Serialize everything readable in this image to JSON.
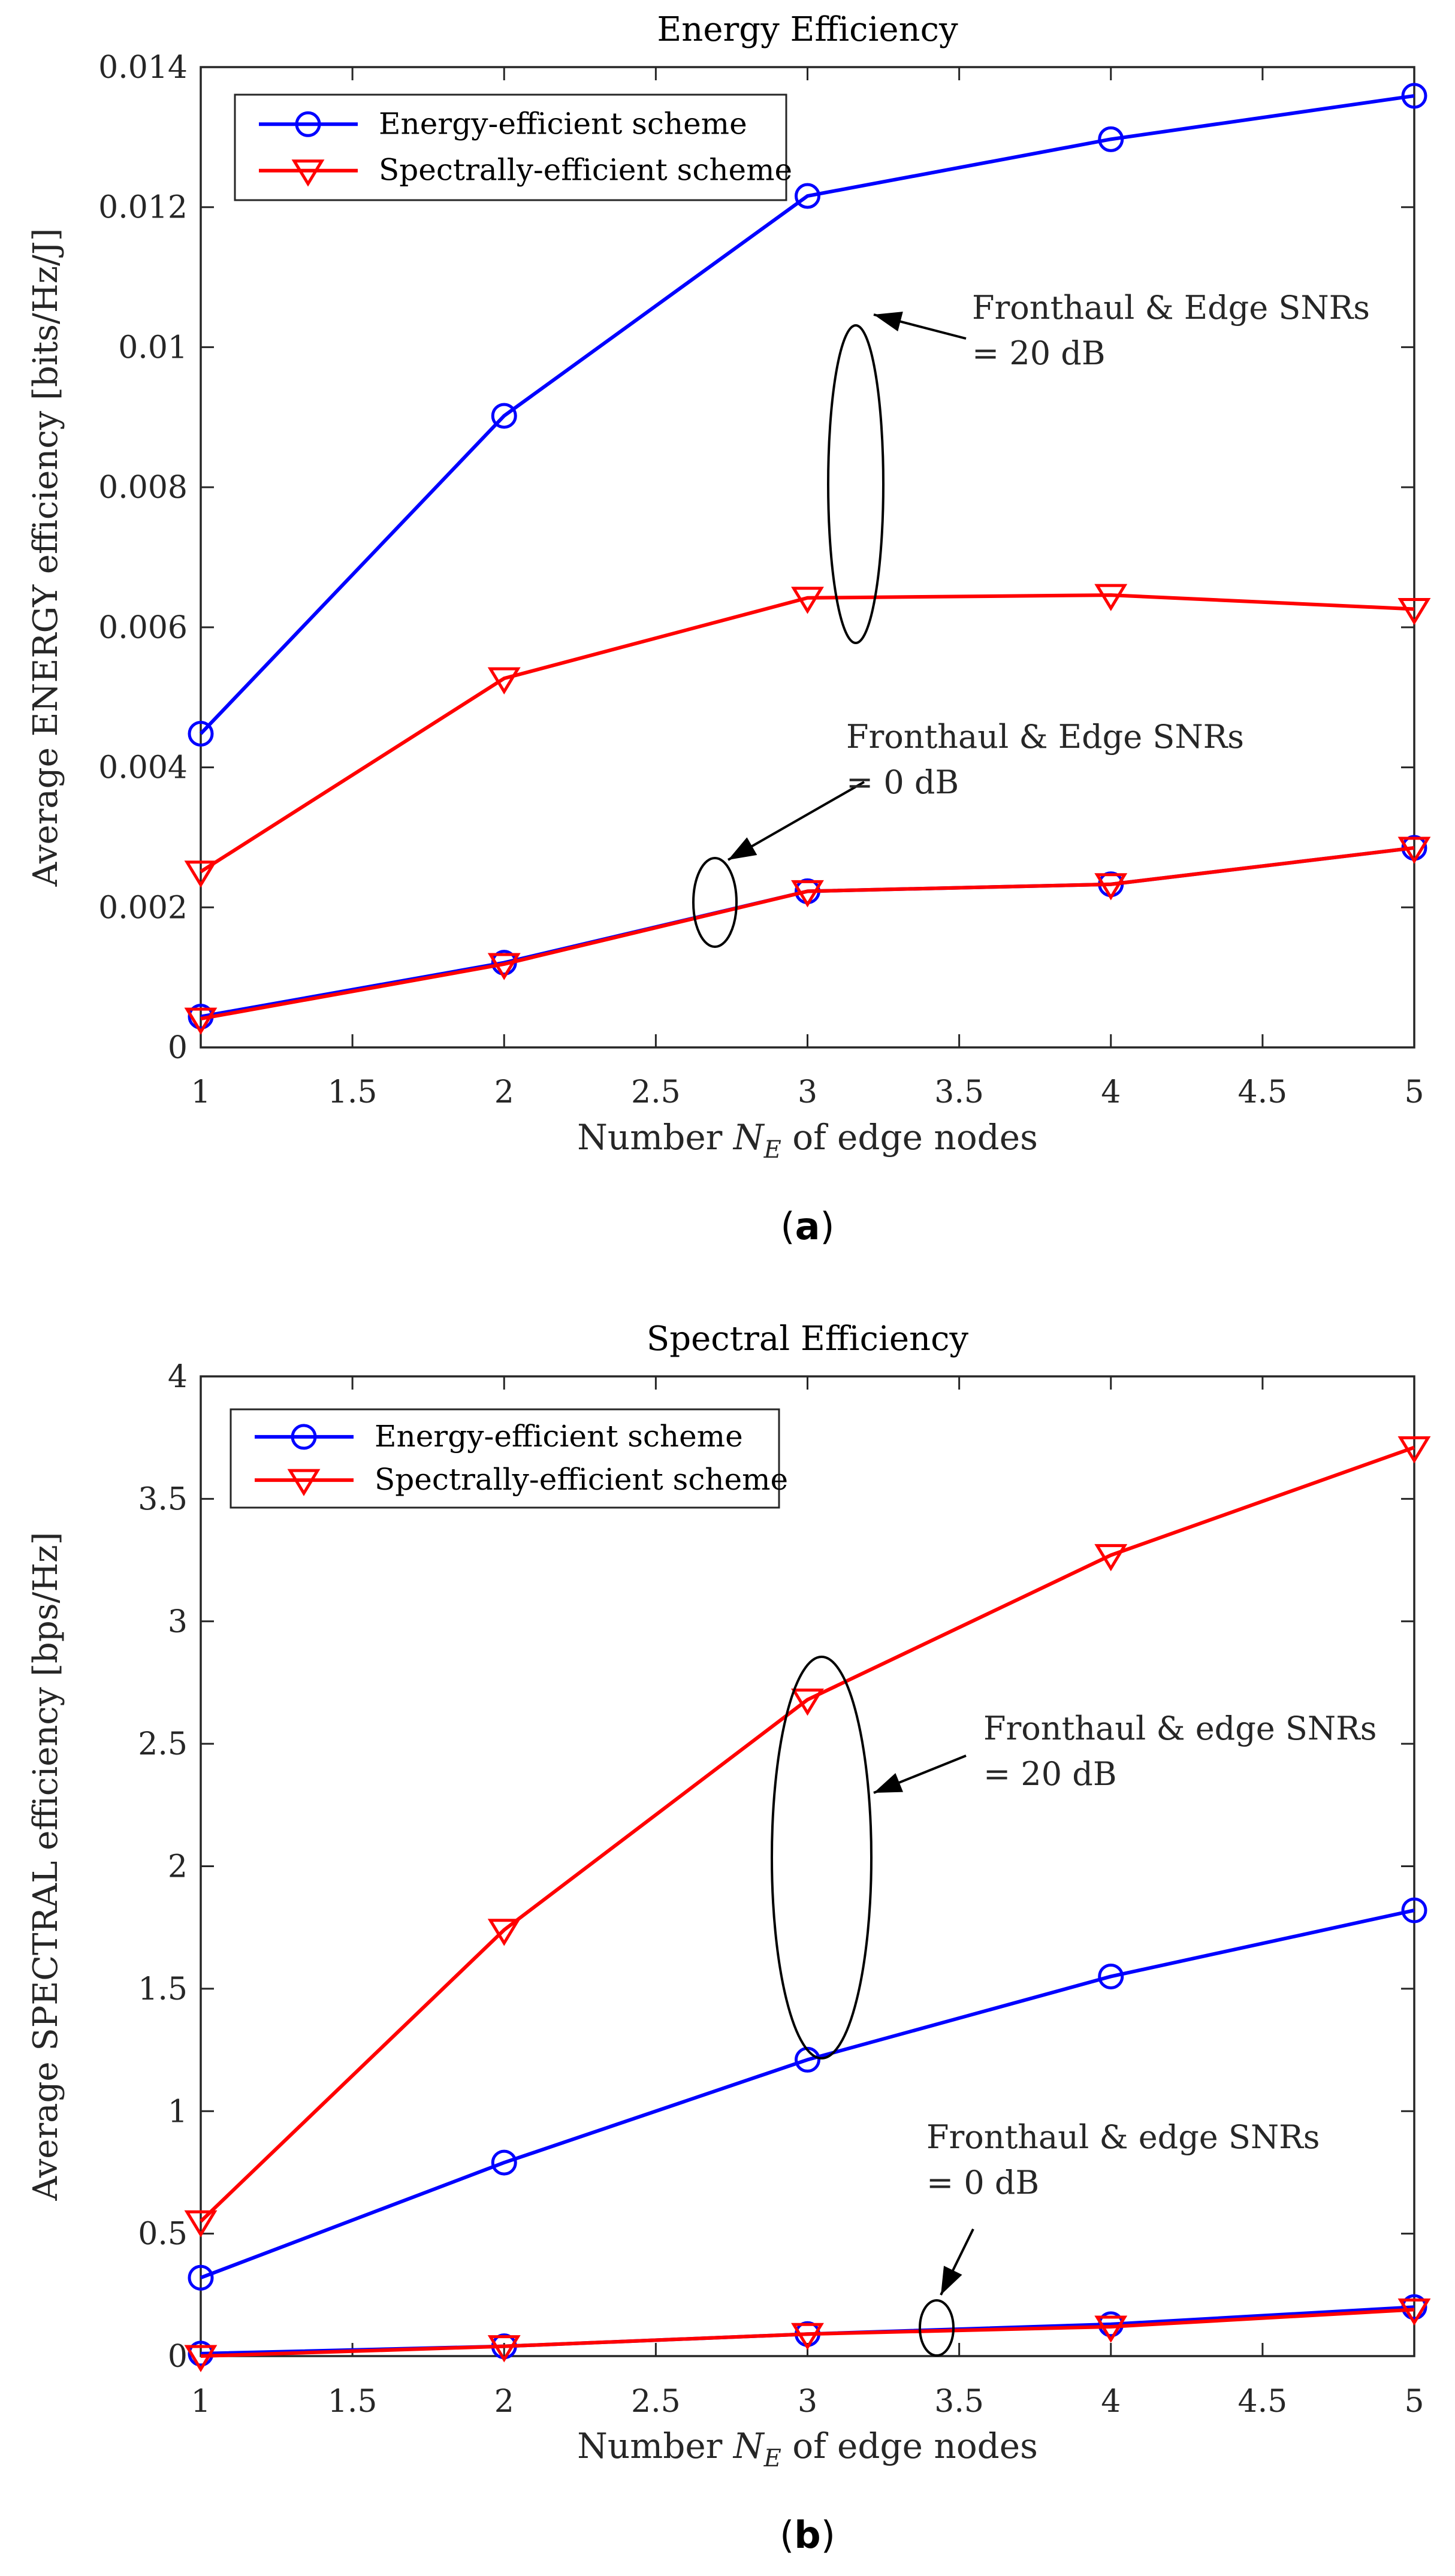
{
  "chart_data": [
    {
      "type": "line",
      "title": "Energy Efficiency",
      "xlabel_prefix": "Number ",
      "xlabel_symbol": "N",
      "xlabel_subscript": "E",
      "xlabel_suffix": " of edge nodes",
      "ylabel": "Average ENERGY efficiency [bits/Hz/J]",
      "xlim": [
        1,
        5
      ],
      "ylim": [
        0,
        0.014
      ],
      "xticks": [
        1,
        1.5,
        2,
        2.5,
        3,
        3.5,
        4,
        4.5,
        5
      ],
      "xtick_labels": [
        "1",
        "1.5",
        "2",
        "2.5",
        "3",
        "3.5",
        "4",
        "4.5",
        "5"
      ],
      "yticks": [
        0,
        0.002,
        0.004,
        0.006,
        0.008,
        0.01,
        0.012,
        0.014
      ],
      "ytick_labels": [
        "0",
        "0.002",
        "0.004",
        "0.006",
        "0.008",
        "0.01",
        "0.012",
        "0.014"
      ],
      "panel_label": "a",
      "legend_position": "top-left",
      "series": [
        {
          "name": "Energy-efficient scheme",
          "key": "ee_20",
          "color": "#0000ff",
          "marker": "circle",
          "x": [
            1,
            2,
            3,
            4,
            5
          ],
          "values": [
            0.00448,
            0.00902,
            0.01216,
            0.01297,
            0.01359
          ]
        },
        {
          "name": "Spectrally-efficient scheme",
          "key": "se_20",
          "color": "#ff0000",
          "marker": "triangle-down",
          "x": [
            1,
            2,
            3,
            4,
            5
          ],
          "values": [
            0.00251,
            0.00527,
            0.00642,
            0.00646,
            0.00626
          ]
        },
        {
          "name": "Energy-efficient scheme",
          "key": "ee_0",
          "color": "#0000ff",
          "marker": "circle",
          "x": [
            1,
            2,
            3,
            4,
            5
          ],
          "values": [
            0.00044,
            0.00121,
            0.00223,
            0.00233,
            0.00285
          ]
        },
        {
          "name": "Spectrally-efficient scheme",
          "key": "se_0",
          "color": "#ff0000",
          "marker": "triangle-down",
          "x": [
            1,
            2,
            3,
            4,
            5
          ],
          "values": [
            0.00041,
            0.00119,
            0.00223,
            0.00233,
            0.00285
          ]
        }
      ],
      "annotations": [
        {
          "line1": "Fronthaul & Edge SNRs",
          "line2": "= 20 dB"
        },
        {
          "line1": "Fronthaul & Edge SNRs",
          "line2": "= 0 dB"
        }
      ]
    },
    {
      "type": "line",
      "title": "Spectral Efficiency",
      "xlabel_prefix": "Number ",
      "xlabel_symbol": "N",
      "xlabel_subscript": "E",
      "xlabel_suffix": " of edge nodes",
      "ylabel": "Average SPECTRAL efficiency [bps/Hz]",
      "xlim": [
        1,
        5
      ],
      "ylim": [
        0,
        4
      ],
      "xticks": [
        1,
        1.5,
        2,
        2.5,
        3,
        3.5,
        4,
        4.5,
        5
      ],
      "xtick_labels": [
        "1",
        "1.5",
        "2",
        "2.5",
        "3",
        "3.5",
        "4",
        "4.5",
        "5"
      ],
      "yticks": [
        0,
        0.5,
        1,
        1.5,
        2,
        2.5,
        3,
        3.5,
        4
      ],
      "ytick_labels": [
        "0",
        "0.5",
        "1",
        "1.5",
        "2",
        "2.5",
        "3",
        "3.5",
        "4"
      ],
      "panel_label": "b",
      "legend_position": "top-left",
      "series": [
        {
          "name": "Energy-efficient scheme",
          "key": "ee_20",
          "color": "#0000ff",
          "marker": "circle",
          "x": [
            1,
            2,
            3,
            4,
            5
          ],
          "values": [
            0.32,
            0.79,
            1.21,
            1.55,
            1.82
          ]
        },
        {
          "name": "Spectrally-efficient scheme",
          "key": "se_20",
          "color": "#ff0000",
          "marker": "triangle-down",
          "x": [
            1,
            2,
            3,
            4,
            5
          ],
          "values": [
            0.55,
            1.74,
            2.68,
            3.27,
            3.71
          ]
        },
        {
          "name": "Energy-efficient scheme",
          "key": "ee_0",
          "color": "#0000ff",
          "marker": "circle",
          "x": [
            1,
            2,
            3,
            4,
            5
          ],
          "values": [
            0.01,
            0.04,
            0.09,
            0.13,
            0.2
          ]
        },
        {
          "name": "Spectrally-efficient scheme",
          "key": "se_0",
          "color": "#ff0000",
          "marker": "triangle-down",
          "x": [
            1,
            2,
            3,
            4,
            5
          ],
          "values": [
            0.0,
            0.04,
            0.09,
            0.12,
            0.19
          ]
        }
      ],
      "annotations": [
        {
          "line1": "Fronthaul & edge SNRs",
          "line2": "= 20 dB"
        },
        {
          "line1": "Fronthaul & edge SNRs",
          "line2": "= 0 dB"
        }
      ]
    }
  ]
}
